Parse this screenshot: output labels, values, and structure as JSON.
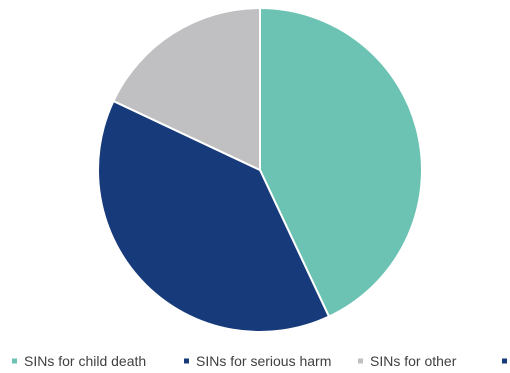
{
  "chart_data": {
    "type": "pie",
    "title": "",
    "slices": [
      {
        "label": "SINs for child death",
        "value": 43,
        "color": "#6cc3b3"
      },
      {
        "label": "SINs for serious harm",
        "value": 39,
        "color": "#173a7a"
      },
      {
        "label": "SINs for other",
        "value": 18,
        "color": "#c0c0c2"
      },
      {
        "label": "",
        "value": 0,
        "color": "#173a7a"
      }
    ],
    "start_angle_deg": 0,
    "direction": "clockwise",
    "legend": {
      "position": "bottom"
    }
  }
}
